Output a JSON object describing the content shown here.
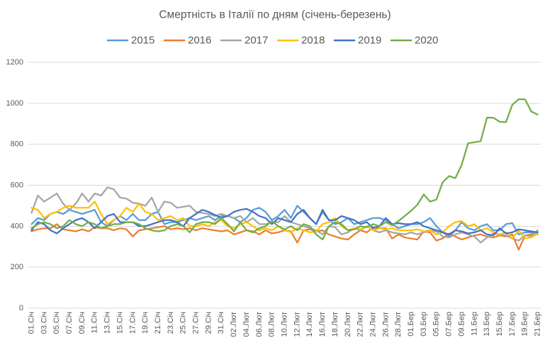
{
  "chart_data": {
    "type": "line",
    "title": "Смертність в Італії по дням (січень-березень)",
    "ylim": [
      0,
      1200
    ],
    "yticks": [
      0,
      200,
      400,
      600,
      800,
      1000,
      1200
    ],
    "grid": true,
    "legend": "top",
    "x_tick_labels": [
      "01.Січ",
      "03.Січ",
      "05.Січ",
      "07.Січ",
      "09.Січ",
      "11.Січ",
      "13.Січ",
      "15.Січ",
      "17.Січ",
      "19.Січ",
      "21.Січ",
      "23.Січ",
      "25.Січ",
      "27.Січ",
      "29.Січ",
      "31.Січ",
      "02.Лют",
      "04.Лют",
      "06.Лют",
      "08.Лют",
      "10.Лют",
      "12.Лют",
      "14.Лют",
      "16.Лют",
      "18.Лют",
      "20.Лют",
      "22.Лют",
      "24.Лют",
      "26.Лют",
      "28.Лют",
      "01.Бер",
      "03.Бер",
      "05.Бер",
      "07.Бер",
      "09.Бер",
      "11.Бер",
      "13.Бер",
      "15.Бер",
      "17.Бер",
      "19.Бер",
      "21.Бер"
    ],
    "series": [
      {
        "name": "2015",
        "color": "#5B9BD5",
        "values": [
          410,
          440,
          430,
          460,
          470,
          460,
          480,
          470,
          460,
          470,
          480,
          420,
          400,
          430,
          450,
          430,
          460,
          430,
          430,
          460,
          470,
          410,
          420,
          420,
          430,
          440,
          430,
          440,
          450,
          430,
          450,
          450,
          440,
          420,
          440,
          480,
          490,
          470,
          430,
          450,
          480,
          440,
          500,
          470,
          440,
          410,
          470,
          430,
          410,
          420,
          440,
          410,
          420,
          430,
          440,
          440,
          430,
          410,
          390,
          400,
          410,
          410,
          420,
          440,
          400,
          370,
          350,
          380,
          420,
          390,
          380,
          400,
          410,
          380,
          380,
          410,
          415,
          360,
          370,
          370,
          360
        ]
      },
      {
        "name": "2016",
        "color": "#ED7D31",
        "values": [
          375,
          385,
          390,
          390,
          410,
          385,
          380,
          375,
          385,
          375,
          395,
          390,
          390,
          380,
          390,
          385,
          350,
          380,
          385,
          390,
          395,
          400,
          385,
          390,
          385,
          390,
          380,
          390,
          385,
          380,
          375,
          380,
          360,
          370,
          380,
          375,
          360,
          380,
          365,
          370,
          380,
          375,
          320,
          380,
          385,
          375,
          380,
          360,
          350,
          340,
          335,
          360,
          380,
          370,
          395,
          390,
          390,
          340,
          360,
          345,
          340,
          335,
          375,
          370,
          330,
          340,
          365,
          350,
          335,
          345,
          355,
          360,
          350,
          345,
          355,
          350,
          360,
          285,
          355,
          360,
          375
        ]
      },
      {
        "name": "2017",
        "color": "#A5A5A5",
        "values": [
          465,
          550,
          520,
          540,
          560,
          510,
          480,
          510,
          560,
          520,
          560,
          550,
          590,
          580,
          540,
          535,
          515,
          510,
          500,
          540,
          470,
          520,
          515,
          490,
          495,
          500,
          470,
          465,
          460,
          450,
          460,
          450,
          440,
          450,
          420,
          440,
          410,
          410,
          420,
          420,
          450,
          420,
          410,
          400,
          390,
          380,
          360,
          400,
          395,
          360,
          370,
          390,
          380,
          400,
          380,
          370,
          380,
          370,
          365,
          360,
          370,
          360,
          370,
          380,
          375,
          350,
          345,
          360,
          370,
          360,
          350,
          320,
          345,
          365,
          360,
          355,
          340,
          330,
          355,
          350,
          380
        ]
      },
      {
        "name": "2018",
        "color": "#FFC000",
        "values": [
          490,
          480,
          440,
          460,
          470,
          490,
          500,
          490,
          490,
          490,
          520,
          460,
          410,
          430,
          450,
          490,
          470,
          510,
          470,
          460,
          430,
          440,
          450,
          430,
          440,
          400,
          400,
          410,
          400,
          420,
          430,
          400,
          390,
          410,
          420,
          400,
          380,
          390,
          380,
          400,
          380,
          370,
          390,
          380,
          370,
          375,
          410,
          420,
          440,
          400,
          380,
          390,
          385,
          400,
          380,
          390,
          385,
          390,
          380,
          380,
          380,
          385,
          375,
          380,
          360,
          370,
          400,
          420,
          425,
          400,
          410,
          380,
          390,
          370,
          360,
          370,
          340,
          380,
          340,
          345,
          365
        ]
      },
      {
        "name": "2019",
        "color": "#4472C4",
        "values": [
          380,
          420,
          410,
          380,
          365,
          390,
          410,
          430,
          440,
          420,
          390,
          420,
          450,
          460,
          420,
          420,
          420,
          400,
          400,
          410,
          420,
          430,
          430,
          420,
          400,
          440,
          460,
          480,
          470,
          455,
          440,
          450,
          470,
          480,
          485,
          470,
          450,
          440,
          410,
          440,
          430,
          420,
          460,
          480,
          440,
          410,
          480,
          430,
          430,
          450,
          440,
          430,
          410,
          420,
          390,
          400,
          440,
          410,
          415,
          410,
          410,
          420,
          400,
          390,
          380,
          370,
          360,
          380,
          375,
          365,
          370,
          380,
          360,
          355,
          390,
          365,
          370,
          385,
          380,
          375,
          370
        ]
      },
      {
        "name": "2020",
        "color": "#70AD47",
        "values": [
          390,
          410,
          420,
          410,
          390,
          400,
          430,
          410,
          400,
          420,
          410,
          390,
          400,
          410,
          410,
          420,
          420,
          410,
          390,
          380,
          375,
          380,
          400,
          410,
          400,
          370,
          410,
          420,
          420,
          410,
          440,
          410,
          375,
          420,
          380,
          370,
          390,
          400,
          425,
          400,
          385,
          400,
          380,
          410,
          400,
          360,
          335,
          400,
          420,
          410,
          380,
          385,
          400,
          395,
          410,
          400,
          420,
          405,
          425,
          450,
          475,
          505,
          555,
          520,
          530,
          615,
          645,
          635,
          700,
          805,
          810,
          815,
          930,
          930,
          910,
          908,
          993,
          1020,
          1020,
          960,
          945
        ]
      }
    ]
  }
}
